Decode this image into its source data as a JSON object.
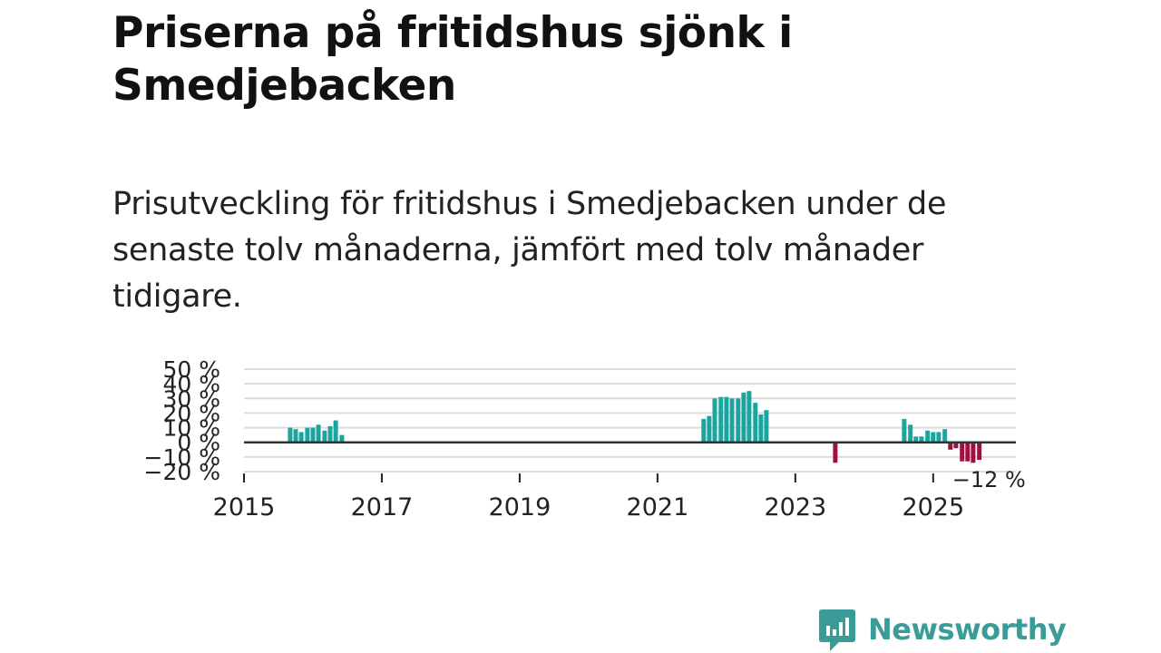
{
  "header": {
    "title": "Priserna på fritidshus sjönk i Smedjebacken",
    "subtitle": "Prisutveckling för fritidshus i Smedjebacken under de senaste tolv månaderna, jämfört med tolv månader tidigare."
  },
  "brand": {
    "name": "Newsworthy",
    "color": "#3a9c96"
  },
  "chart_data": {
    "type": "bar",
    "title": "Priserna på fritidshus sjönk i Smedjebacken",
    "xlabel": "",
    "ylabel": "",
    "ylim": [
      -20,
      50
    ],
    "xlim": [
      2015.0,
      2026.2
    ],
    "y_ticks": [
      -20,
      -10,
      0,
      10,
      20,
      30,
      40,
      50
    ],
    "y_tick_labels": [
      "−20 %",
      "−10 %",
      "0 %",
      "10 %",
      "20 %",
      "30 %",
      "40 %",
      "50 %"
    ],
    "x_ticks": [
      2015,
      2017,
      2019,
      2021,
      2023,
      2025
    ],
    "x_tick_labels": [
      "2015",
      "2017",
      "2019",
      "2021",
      "2023",
      "2025"
    ],
    "grid": true,
    "positive_color": "#1aa59f",
    "negative_color": "#a0123e",
    "series": [
      {
        "name": "Prisutveckling",
        "points": [
          {
            "t": 2015.67,
            "v": 10
          },
          {
            "t": 2015.75,
            "v": 9
          },
          {
            "t": 2015.83,
            "v": 7
          },
          {
            "t": 2015.92,
            "v": 10
          },
          {
            "t": 2016.0,
            "v": 10
          },
          {
            "t": 2016.08,
            "v": 12
          },
          {
            "t": 2016.17,
            "v": 8
          },
          {
            "t": 2016.25,
            "v": 11
          },
          {
            "t": 2016.33,
            "v": 15
          },
          {
            "t": 2016.42,
            "v": 5
          },
          {
            "t": 2021.67,
            "v": 16
          },
          {
            "t": 2021.75,
            "v": 18
          },
          {
            "t": 2021.83,
            "v": 30
          },
          {
            "t": 2021.92,
            "v": 31
          },
          {
            "t": 2022.0,
            "v": 31
          },
          {
            "t": 2022.08,
            "v": 30
          },
          {
            "t": 2022.17,
            "v": 30
          },
          {
            "t": 2022.25,
            "v": 34
          },
          {
            "t": 2022.33,
            "v": 35
          },
          {
            "t": 2022.42,
            "v": 27
          },
          {
            "t": 2022.5,
            "v": 19
          },
          {
            "t": 2022.58,
            "v": 22
          },
          {
            "t": 2023.58,
            "v": -14
          },
          {
            "t": 2024.58,
            "v": 16
          },
          {
            "t": 2024.67,
            "v": 12
          },
          {
            "t": 2024.75,
            "v": 4
          },
          {
            "t": 2024.83,
            "v": 4
          },
          {
            "t": 2024.92,
            "v": 8
          },
          {
            "t": 2025.0,
            "v": 7
          },
          {
            "t": 2025.08,
            "v": 7
          },
          {
            "t": 2025.17,
            "v": 9
          },
          {
            "t": 2025.25,
            "v": -5
          },
          {
            "t": 2025.33,
            "v": -4
          },
          {
            "t": 2025.42,
            "v": -13
          },
          {
            "t": 2025.5,
            "v": -13
          },
          {
            "t": 2025.58,
            "v": -14
          },
          {
            "t": 2025.67,
            "v": -12
          }
        ]
      }
    ],
    "annotations": [
      {
        "text": "−12 %",
        "t": 2025.67,
        "v": -12
      }
    ]
  }
}
